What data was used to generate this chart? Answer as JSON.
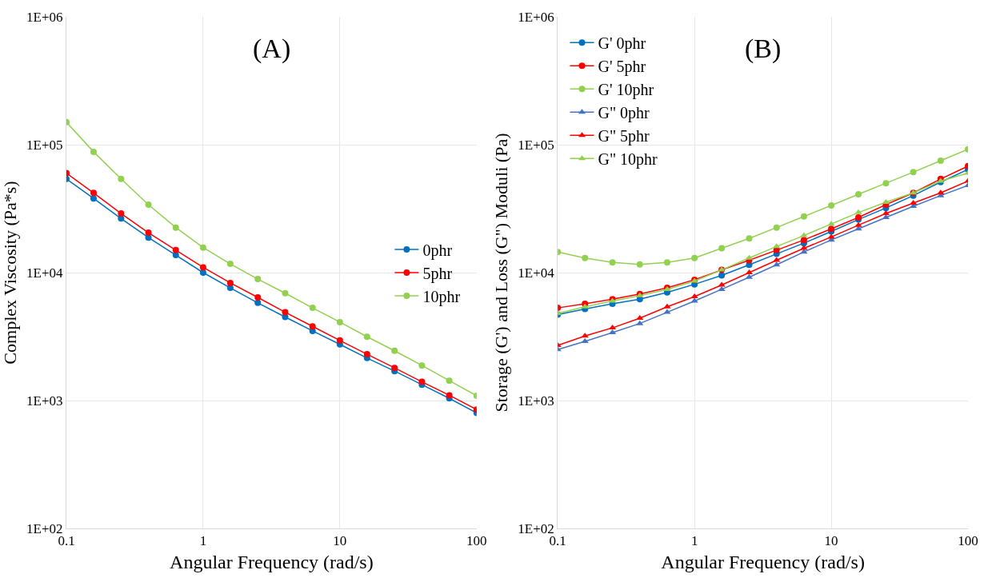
{
  "chart_data": [
    {
      "type": "line",
      "title": "(A)",
      "xlabel": "Angular Frequency (rad/s)",
      "ylabel": "Complex Viscosity (Pa*s)",
      "x": [
        0.1,
        0.158,
        0.251,
        0.398,
        0.631,
        1,
        1.58,
        2.51,
        3.98,
        6.31,
        10,
        15.8,
        25.1,
        39.8,
        63.1,
        100
      ],
      "log": "xy",
      "grid": true,
      "legend": "right",
      "marker": "circle",
      "xlim": [
        0.1,
        100
      ],
      "xticks": [
        0.1,
        1,
        10,
        100
      ],
      "ylim": [
        100,
        1000000
      ],
      "yticks": [
        {
          "value": 100,
          "label": "1E+02"
        },
        {
          "value": 1000,
          "label": "1E+03"
        },
        {
          "value": 10000,
          "label": "1E+04"
        },
        {
          "value": 100000,
          "label": "1E+05"
        },
        {
          "value": 1000000,
          "label": "1E+06"
        }
      ],
      "series": [
        {
          "name": "0phr",
          "color": "#0070c0",
          "values": [
            54000,
            38000,
            26500,
            18800,
            13700,
            10000,
            7600,
            5800,
            4500,
            3500,
            2750,
            2150,
            1700,
            1330,
            1040,
            800
          ]
        },
        {
          "name": "5phr",
          "color": "#ff0000",
          "values": [
            60000,
            42000,
            29000,
            20500,
            15000,
            11000,
            8300,
            6400,
            4900,
            3800,
            2950,
            2300,
            1800,
            1400,
            1100,
            850
          ]
        },
        {
          "name": "10phr",
          "color": "#92d050",
          "values": [
            150000,
            88000,
            54000,
            34000,
            22500,
            15700,
            11700,
            8900,
            6900,
            5300,
            4100,
            3150,
            2450,
            1880,
            1430,
            1090
          ]
        }
      ]
    },
    {
      "type": "line",
      "title": "(B)",
      "xlabel": "Angular Frequency (rad/s)",
      "ylabel": "Storage (G') and Loss (G\") Moduli (Pa)",
      "x": [
        0.1,
        0.158,
        0.251,
        0.398,
        0.631,
        1,
        1.58,
        2.51,
        3.98,
        6.31,
        10,
        15.8,
        25.1,
        39.8,
        63.1,
        100
      ],
      "log": "xy",
      "grid": true,
      "legend": "top left",
      "xlim": [
        0.1,
        100
      ],
      "xticks": [
        0.1,
        1,
        10,
        100
      ],
      "ylim": [
        100,
        1000000
      ],
      "yticks": [
        {
          "value": 100,
          "label": "1E+02"
        },
        {
          "value": 1000,
          "label": "1E+03"
        },
        {
          "value": 10000,
          "label": "1E+04"
        },
        {
          "value": 100000,
          "label": "1E+05"
        },
        {
          "value": 1000000,
          "label": "1E+06"
        }
      ],
      "series": [
        {
          "name": "G' 0phr",
          "color": "#0070c0",
          "marker": "circle",
          "values": [
            4700,
            5200,
            5700,
            6200,
            7000,
            8100,
            9500,
            11500,
            14000,
            17000,
            21000,
            26000,
            32000,
            40000,
            51000,
            64000
          ]
        },
        {
          "name": "G' 5phr",
          "color": "#ff0000",
          "marker": "circle",
          "values": [
            5300,
            5700,
            6200,
            6800,
            7600,
            8800,
            10500,
            12500,
            15000,
            18000,
            22000,
            27000,
            34000,
            42000,
            54000,
            68000
          ]
        },
        {
          "name": "G' 10phr",
          "color": "#92d050",
          "marker": "circle",
          "values": [
            14500,
            13000,
            12000,
            11600,
            12000,
            13000,
            15500,
            18500,
            22500,
            27500,
            33500,
            41000,
            50000,
            61000,
            75000,
            92000
          ]
        },
        {
          "name": "G\" 0phr",
          "color": "#4472c4",
          "marker": "triangle",
          "values": [
            2500,
            2900,
            3400,
            4000,
            4900,
            6000,
            7400,
            9200,
            11500,
            14500,
            18000,
            22000,
            27000,
            33000,
            40000,
            48000
          ]
        },
        {
          "name": "G\" 5phr",
          "color": "#ff0000",
          "marker": "triangle",
          "values": [
            2700,
            3200,
            3700,
            4400,
            5400,
            6500,
            8000,
            10000,
            12500,
            15500,
            19000,
            23500,
            29000,
            35000,
            42000,
            52000
          ]
        },
        {
          "name": "G\" 10phr",
          "color": "#92d050",
          "marker": "triangle",
          "values": [
            4800,
            5400,
            6000,
            6600,
            7400,
            8600,
            10500,
            13000,
            16000,
            19500,
            24000,
            29500,
            35500,
            42000,
            52000,
            60000
          ]
        }
      ]
    }
  ]
}
